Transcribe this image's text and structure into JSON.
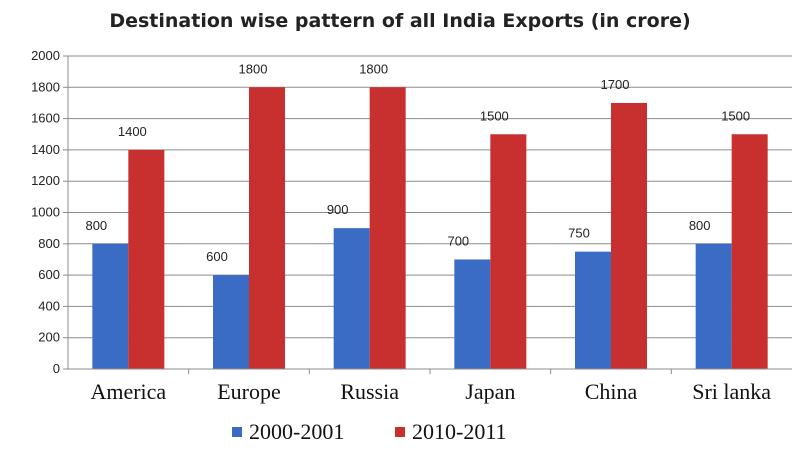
{
  "chart_data": {
    "type": "bar",
    "title": "Destination wise pattern of all India Exports (in crore)",
    "categories": [
      "America",
      "Europe",
      "Russia",
      "Japan",
      "China",
      "Sri lanka"
    ],
    "series": [
      {
        "name": "2000-2001",
        "values": [
          800,
          600,
          900,
          700,
          750,
          800
        ],
        "color": "#3a6cc6"
      },
      {
        "name": "2010-2011",
        "values": [
          1400,
          1800,
          1800,
          1500,
          1700,
          1500
        ],
        "color": "#c8302f"
      }
    ],
    "yticks": [
      "0",
      "200",
      "400",
      "600",
      "800",
      "1000",
      "1200",
      "1400",
      "1600",
      "1800",
      "2000"
    ],
    "ylim": [
      0,
      2000
    ],
    "xlabel": "",
    "ylabel": "",
    "grid": true,
    "legend": "bottom"
  }
}
